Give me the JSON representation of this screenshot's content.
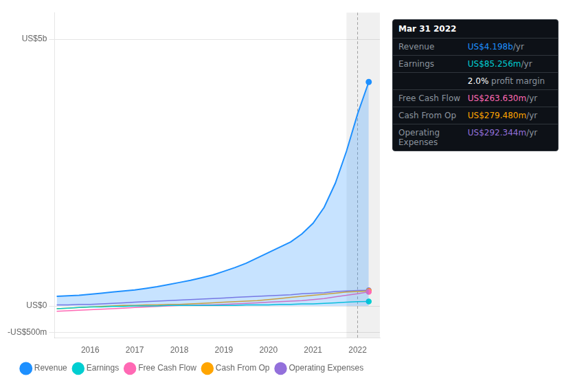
{
  "chart_data": {
    "type": "line",
    "x": [
      2015.25,
      2015.5,
      2015.75,
      2016.0,
      2016.25,
      2016.5,
      2016.75,
      2017.0,
      2017.25,
      2017.5,
      2017.75,
      2018.0,
      2018.25,
      2018.5,
      2018.75,
      2019.0,
      2019.25,
      2019.5,
      2019.75,
      2020.0,
      2020.25,
      2020.5,
      2020.75,
      2021.0,
      2021.25,
      2021.5,
      2021.75,
      2022.0,
      2022.25
    ],
    "series": [
      {
        "name": "Revenue",
        "color": "#1e90ff",
        "type": "area",
        "values": [
          0.18,
          0.19,
          0.2,
          0.22,
          0.24,
          0.26,
          0.28,
          0.3,
          0.33,
          0.36,
          0.4,
          0.44,
          0.48,
          0.53,
          0.58,
          0.65,
          0.72,
          0.8,
          0.9,
          1.0,
          1.1,
          1.2,
          1.35,
          1.55,
          1.85,
          2.3,
          2.9,
          3.6,
          4.198
        ]
      },
      {
        "name": "Earnings",
        "color": "#00ced1",
        "values": [
          -0.05,
          -0.04,
          -0.03,
          -0.02,
          -0.02,
          -0.01,
          -0.01,
          0.0,
          0.0,
          0.0,
          0.01,
          0.01,
          0.01,
          0.01,
          0.01,
          0.01,
          0.01,
          0.02,
          0.02,
          0.02,
          0.03,
          0.03,
          0.04,
          0.04,
          0.05,
          0.06,
          0.07,
          0.08,
          0.0853
        ]
      },
      {
        "name": "Free Cash Flow",
        "color": "#ff69b4",
        "values": [
          -0.1,
          -0.09,
          -0.08,
          -0.07,
          -0.06,
          -0.05,
          -0.04,
          -0.03,
          -0.02,
          -0.01,
          0.0,
          0.01,
          0.01,
          0.02,
          0.02,
          0.03,
          0.04,
          0.05,
          0.06,
          0.07,
          0.08,
          0.09,
          0.1,
          0.12,
          0.14,
          0.17,
          0.2,
          0.23,
          0.2636
        ]
      },
      {
        "name": "Cash From Op",
        "color": "#ffa500",
        "values": [
          -0.05,
          -0.04,
          -0.03,
          -0.02,
          -0.01,
          0.0,
          0.01,
          0.01,
          0.02,
          0.02,
          0.03,
          0.03,
          0.04,
          0.05,
          0.06,
          0.07,
          0.08,
          0.09,
          0.1,
          0.12,
          0.14,
          0.16,
          0.18,
          0.2,
          0.22,
          0.24,
          0.26,
          0.27,
          0.2795
        ]
      },
      {
        "name": "Operating Expenses",
        "color": "#9370db",
        "values": [
          0.02,
          0.02,
          0.03,
          0.03,
          0.04,
          0.05,
          0.06,
          0.07,
          0.08,
          0.09,
          0.1,
          0.11,
          0.12,
          0.13,
          0.14,
          0.15,
          0.16,
          0.17,
          0.18,
          0.19,
          0.2,
          0.21,
          0.23,
          0.24,
          0.25,
          0.27,
          0.28,
          0.29,
          0.2923
        ]
      }
    ],
    "xlim": [
      2015.2,
      2022.5
    ],
    "xticks": [
      2016,
      2017,
      2018,
      2019,
      2020,
      2021,
      2022
    ],
    "ylim": [
      -0.6,
      5.5
    ],
    "yticks": [
      {
        "value": 5,
        "label": "US$5b"
      },
      {
        "value": 0,
        "label": "US$0"
      },
      {
        "value": -0.5,
        "label": "-US$500m"
      }
    ],
    "grid": true,
    "legend": "bottom",
    "highlight": [
      2021.75,
      2022.5
    ],
    "vline": 2022.0,
    "annotations": [
      {
        "title": "Mar 31 2022",
        "rows": [
          {
            "label": "Revenue",
            "value": "US$4.198b",
            "unit": "/yr",
            "color": "#1e90ff"
          },
          {
            "label": "Earnings",
            "value": "US$85.256m",
            "unit": "/yr",
            "color": "#00ced1"
          },
          {
            "value": "2.0%",
            "unit": " profit margin",
            "color": "#ffffff"
          },
          {
            "label": "Free Cash Flow",
            "value": "US$263.630m",
            "unit": "/yr",
            "color": "#ff69b4"
          },
          {
            "label": "Cash From Op",
            "value": "US$279.480m",
            "unit": "/yr",
            "color": "#ffa500"
          },
          {
            "label": "Operating Expenses",
            "value": "US$292.344m",
            "unit": "/yr",
            "color": "#9370db"
          }
        ]
      }
    ]
  }
}
